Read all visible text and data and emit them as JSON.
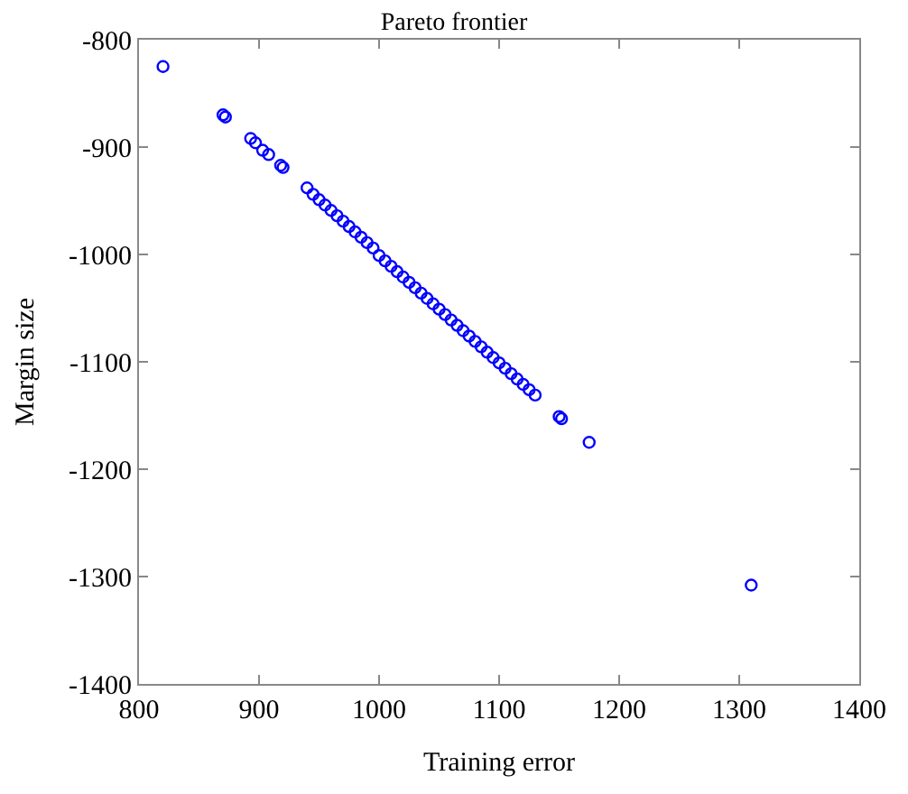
{
  "chart_data": {
    "type": "scatter",
    "title": "Pareto frontier",
    "xlabel": "Training error",
    "ylabel": "Margin size",
    "x": [
      820,
      870,
      872,
      893,
      897,
      903,
      908,
      918,
      920,
      940,
      945,
      950,
      955,
      960,
      965,
      970,
      975,
      980,
      985,
      990,
      995,
      1000,
      1005,
      1010,
      1015,
      1020,
      1025,
      1030,
      1035,
      1040,
      1045,
      1050,
      1055,
      1060,
      1065,
      1070,
      1075,
      1080,
      1085,
      1090,
      1095,
      1100,
      1105,
      1110,
      1115,
      1120,
      1125,
      1130,
      1150,
      1152,
      1175,
      1310
    ],
    "series": [
      {
        "color": "#0000ff",
        "values": [
          -825,
          -870,
          -872,
          -892,
          -896,
          -903,
          -907,
          -917,
          -919,
          -938,
          -944,
          -949,
          -954,
          -959,
          -964,
          -969,
          -974,
          -979,
          -984,
          -989,
          -994,
          -1001,
          -1006,
          -1011,
          -1016,
          -1021,
          -1026,
          -1031,
          -1036,
          -1041,
          -1046,
          -1051,
          -1056,
          -1061,
          -1066,
          -1071,
          -1076,
          -1081,
          -1086,
          -1091,
          -1096,
          -1101,
          -1106,
          -1111,
          -1116,
          -1121,
          -1126,
          -1131,
          -1151,
          -1153,
          -1175,
          -1308
        ]
      }
    ],
    "marker": "circle",
    "xlim": [
      800,
      1400
    ],
    "ylim": [
      -1400,
      -800
    ],
    "xticks": [
      800,
      900,
      1000,
      1100,
      1200,
      1300,
      1400
    ],
    "yticks": [
      -1400,
      -1300,
      -1200,
      -1100,
      -1000,
      -900,
      -800
    ]
  }
}
